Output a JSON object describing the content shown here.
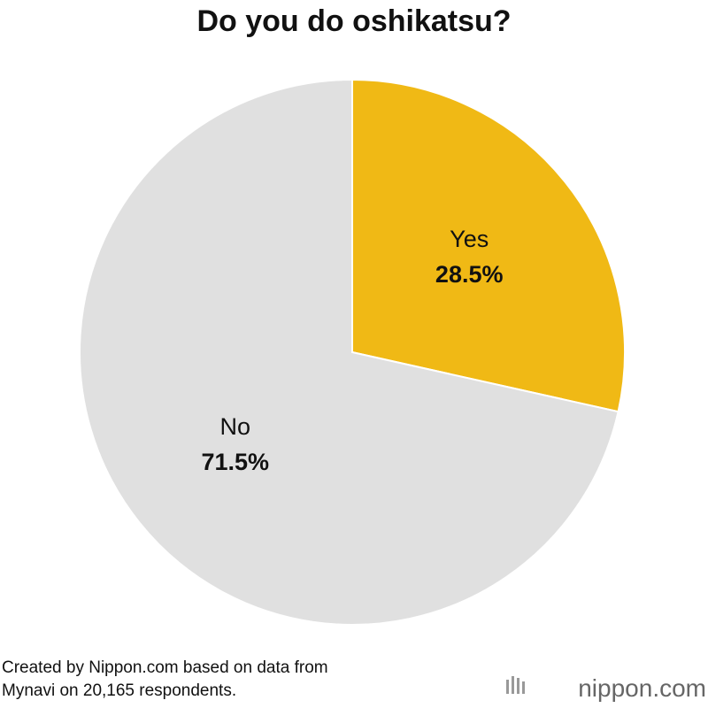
{
  "chart_data": {
    "type": "pie",
    "title": "Do you do oshikatsu?",
    "categories": [
      "Yes",
      "No"
    ],
    "values": [
      28.5,
      71.5
    ],
    "value_labels": [
      "28.5%",
      "71.5%"
    ],
    "colors": [
      "#f0b915",
      "#e0e0e0"
    ],
    "source": "Created by Nippon.com based on data from Mynavi on 20,165 respondents.",
    "logo": "nippon.com"
  }
}
